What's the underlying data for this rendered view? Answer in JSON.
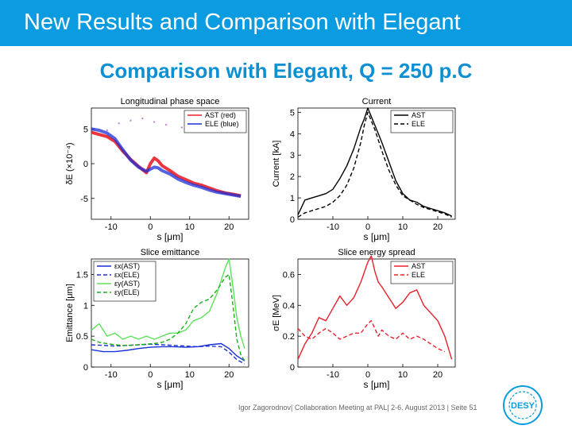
{
  "header": {
    "title": "New Results and Comparison with Elegant"
  },
  "slide": {
    "subtitle": "Comparison with Elegant, Q = 250 p.C"
  },
  "footer": {
    "text": "Igor Zagorodnov| Collaboration Meeting at PAL| 2-6. August 2013 | Seite 51"
  },
  "logo": {
    "text": "DESY",
    "icon": "desy-logo-icon",
    "color": "#0a9be0"
  },
  "colors": {
    "ast_red": "#e8202a",
    "ele_blue": "#1a2fd8",
    "green_light": "#5ee05a",
    "green_dark": "#19b019"
  },
  "chart_data": [
    {
      "type": "scatter",
      "title": "Longitudinal phase space",
      "xlabel": "s [μm]",
      "ylabel": "δE (×10⁻⁴)",
      "xlim": [
        -15,
        25
      ],
      "ylim": [
        -8,
        8
      ],
      "xticks": [
        "-10",
        "0",
        "10",
        "20"
      ],
      "yticks": [
        "5",
        "0",
        "-5"
      ],
      "legend_position": "top-right",
      "series": [
        {
          "name": "AST (red)",
          "color": "#e8202a",
          "x": [
            -15,
            -13,
            -11,
            -9,
            -7,
            -5,
            -3,
            -1,
            0,
            1,
            2,
            3,
            5,
            7,
            9,
            11,
            13,
            15,
            17,
            19,
            21,
            23
          ],
          "y": [
            4.5,
            4.2,
            3.9,
            3.2,
            1.8,
            0.6,
            -0.4,
            -1.3,
            0,
            0.8,
            0.4,
            -0.3,
            -1.0,
            -1.8,
            -2.3,
            -2.8,
            -3.1,
            -3.5,
            -3.9,
            -4.2,
            -4.4,
            -4.6
          ]
        },
        {
          "name": "ELE (blue)",
          "color": "#1a2fd8",
          "x": [
            -15,
            -13,
            -11,
            -9,
            -7,
            -5,
            -3,
            -1,
            0,
            1,
            2,
            3,
            5,
            7,
            9,
            11,
            13,
            15,
            17,
            19,
            21,
            23
          ],
          "y": [
            5.0,
            4.8,
            4.4,
            3.6,
            2.0,
            0.5,
            -0.5,
            -1.1,
            -0.8,
            -0.5,
            -0.6,
            -1.0,
            -1.5,
            -2.2,
            -2.7,
            -3.1,
            -3.4,
            -3.8,
            -4.1,
            -4.3,
            -4.5,
            -4.7
          ]
        }
      ],
      "annotations": [
        {
          "x": [
            -11,
            -8,
            -5,
            -2,
            1,
            4,
            8
          ],
          "y": [
            4.8,
            5.8,
            6.2,
            6.5,
            6.0,
            5.6,
            5.2
          ]
        }
      ]
    },
    {
      "type": "line",
      "title": "Current",
      "xlabel": "s [μm]",
      "ylabel": "Current [kA]",
      "xlim": [
        -20,
        25
      ],
      "ylim": [
        0,
        5.2
      ],
      "xticks": [
        "-10",
        "0",
        "10",
        "20"
      ],
      "yticks": [
        "0",
        "1",
        "2",
        "3",
        "4",
        "5"
      ],
      "legend_position": "top-right",
      "series": [
        {
          "name": "AST",
          "color": "#000000",
          "dash": "none",
          "x": [
            -20,
            -18,
            -16,
            -14,
            -12,
            -10,
            -8,
            -6,
            -4,
            -2,
            -1,
            0,
            1,
            2,
            4,
            6,
            8,
            10,
            12,
            14,
            16,
            18,
            20,
            22,
            24
          ],
          "y": [
            0.2,
            0.9,
            1.0,
            1.1,
            1.2,
            1.4,
            1.9,
            2.5,
            3.3,
            4.3,
            4.7,
            5.2,
            4.8,
            4.4,
            3.6,
            2.7,
            1.8,
            1.2,
            0.9,
            0.8,
            0.6,
            0.5,
            0.4,
            0.3,
            0.15
          ]
        },
        {
          "name": "ELE",
          "color": "#000000",
          "dash": "5,3",
          "x": [
            -20,
            -18,
            -16,
            -14,
            -12,
            -10,
            -8,
            -6,
            -4,
            -2,
            -1,
            0,
            1,
            2,
            4,
            6,
            8,
            10,
            12,
            14,
            16,
            18,
            20,
            22,
            24
          ],
          "y": [
            0.1,
            0.3,
            0.4,
            0.5,
            0.6,
            0.8,
            1.1,
            1.6,
            2.4,
            3.6,
            4.4,
            5.0,
            4.6,
            4.2,
            3.2,
            2.3,
            1.6,
            1.1,
            0.9,
            0.7,
            0.55,
            0.45,
            0.35,
            0.25,
            0.1
          ]
        }
      ]
    },
    {
      "type": "line",
      "title": "Slice emittance",
      "xlabel": "s [μm]",
      "ylabel": "Emittance [μm]",
      "xlim": [
        -15,
        25
      ],
      "ylim": [
        0,
        1.75
      ],
      "xticks": [
        "-10",
        "0",
        "10",
        "20"
      ],
      "yticks": [
        "0",
        "0.5",
        "1",
        "1.5"
      ],
      "legend_position": "top-left",
      "series": [
        {
          "name": "εx(AST)",
          "color": "#1a2fd8",
          "dash": "none",
          "x": [
            -15,
            -12,
            -9,
            -6,
            -3,
            0,
            3,
            6,
            9,
            12,
            15,
            18,
            20,
            22,
            24
          ],
          "y": [
            0.28,
            0.25,
            0.25,
            0.27,
            0.3,
            0.32,
            0.33,
            0.33,
            0.32,
            0.33,
            0.36,
            0.38,
            0.3,
            0.18,
            0.1
          ]
        },
        {
          "name": "εx(ELE)",
          "color": "#1a2fd8",
          "dash": "5,3",
          "x": [
            -15,
            -12,
            -9,
            -6,
            -3,
            0,
            3,
            6,
            9,
            12,
            15,
            18,
            20,
            22,
            24
          ],
          "y": [
            0.36,
            0.35,
            0.34,
            0.35,
            0.36,
            0.37,
            0.36,
            0.35,
            0.34,
            0.33,
            0.34,
            0.33,
            0.24,
            0.12,
            0.05
          ]
        },
        {
          "name": "εy(AST)",
          "color": "#5ee05a",
          "dash": "none",
          "x": [
            -15,
            -13,
            -11,
            -9,
            -7,
            -5,
            -3,
            -1,
            1,
            3,
            5,
            7,
            9,
            11,
            13,
            15,
            17,
            19,
            20,
            21,
            22,
            23,
            24
          ],
          "y": [
            0.6,
            0.7,
            0.5,
            0.55,
            0.45,
            0.5,
            0.45,
            0.5,
            0.45,
            0.5,
            0.55,
            0.55,
            0.6,
            0.75,
            0.8,
            0.9,
            1.2,
            1.6,
            1.75,
            1.3,
            0.8,
            0.5,
            0.3
          ]
        },
        {
          "name": "εy(ELE)",
          "color": "#19b019",
          "dash": "5,3",
          "x": [
            -15,
            -13,
            -11,
            -9,
            -7,
            -5,
            -3,
            -1,
            1,
            3,
            5,
            7,
            9,
            11,
            13,
            15,
            17,
            19,
            20,
            21,
            22,
            23,
            24
          ],
          "y": [
            0.45,
            0.4,
            0.38,
            0.36,
            0.35,
            0.35,
            0.36,
            0.37,
            0.38,
            0.4,
            0.45,
            0.55,
            0.7,
            0.95,
            1.05,
            1.1,
            1.25,
            1.45,
            1.5,
            1.0,
            0.45,
            0.2,
            0.1
          ]
        }
      ]
    },
    {
      "type": "line",
      "title": "Slice energy spread",
      "xlabel": "s [μm]",
      "ylabel": "σE [MeV]",
      "xlim": [
        -20,
        25
      ],
      "ylim": [
        0,
        0.7
      ],
      "xticks": [
        "-10",
        "0",
        "10",
        "20"
      ],
      "yticks": [
        "0",
        "0.2",
        "0.4",
        "0.6"
      ],
      "legend_position": "top-right",
      "series": [
        {
          "name": "AST",
          "color": "#e8202a",
          "dash": "none",
          "x": [
            -20,
            -18,
            -16,
            -14,
            -12,
            -10,
            -8,
            -6,
            -4,
            -2,
            0,
            1,
            2,
            3,
            4,
            6,
            8,
            10,
            12,
            14,
            16,
            18,
            20,
            22,
            24
          ],
          "y": [
            0.05,
            0.15,
            0.22,
            0.32,
            0.3,
            0.38,
            0.46,
            0.4,
            0.45,
            0.55,
            0.68,
            0.72,
            0.62,
            0.55,
            0.52,
            0.45,
            0.38,
            0.42,
            0.48,
            0.5,
            0.4,
            0.35,
            0.3,
            0.2,
            0.05
          ]
        },
        {
          "name": "ELE",
          "color": "#e8202a",
          "dash": "5,3",
          "x": [
            -20,
            -18,
            -16,
            -14,
            -12,
            -10,
            -8,
            -6,
            -4,
            -2,
            0,
            1,
            2,
            3,
            4,
            6,
            8,
            10,
            12,
            14,
            16,
            18,
            20,
            22
          ],
          "y": [
            0.25,
            0.2,
            0.18,
            0.22,
            0.25,
            0.22,
            0.18,
            0.2,
            0.22,
            0.22,
            0.28,
            0.3,
            0.25,
            0.2,
            0.24,
            0.2,
            0.18,
            0.22,
            0.18,
            0.2,
            0.18,
            0.15,
            0.12,
            0.1
          ]
        }
      ]
    }
  ]
}
